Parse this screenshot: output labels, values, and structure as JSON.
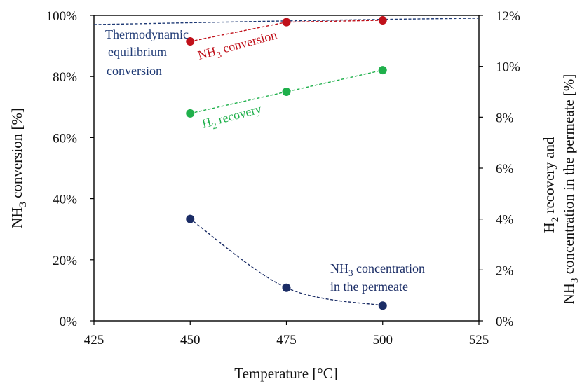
{
  "chart_data": {
    "type": "line",
    "xlabel": "Temperature [°C]",
    "ylabel_left": {
      "main": "NH",
      "sub": "3",
      "rest": " conversion [%]"
    },
    "ylabel_right_line1": {
      "main": "H",
      "sub": "2",
      "rest": " recovery and"
    },
    "ylabel_right_line2": {
      "main": "NH",
      "sub": "3",
      "rest": " concentration in the permeate [%]"
    },
    "xlim": [
      425,
      525
    ],
    "ylim_left": [
      0,
      100
    ],
    "ylim_right": [
      0,
      12
    ],
    "x_ticks": [
      "425",
      "450",
      "475",
      "500",
      "525"
    ],
    "y_left_ticks": [
      "0%",
      "20%",
      "40%",
      "60%",
      "80%",
      "100%"
    ],
    "y_right_ticks": [
      "0%",
      "2%",
      "4%",
      "6%",
      "8%",
      "10%",
      "12%"
    ],
    "grid": false,
    "series": [
      {
        "id": "equilibrium",
        "axis": "left",
        "style": "dashed-line",
        "color": "#1f3a75",
        "label_lines": [
          "Thermodynamic",
          "equilibrium",
          "conversion"
        ],
        "x": [
          425,
          450,
          475,
          500,
          525
        ],
        "y": [
          97.0,
          97.6,
          98.2,
          98.7,
          99.1
        ]
      },
      {
        "id": "nh3-conversion",
        "axis": "left",
        "style": "dashed-line-markers",
        "color": "#c0101a",
        "label": {
          "main": "NH",
          "sub": "3",
          "rest": " conversion"
        },
        "x": [
          450,
          475,
          500
        ],
        "y": [
          91.5,
          97.8,
          98.4
        ]
      },
      {
        "id": "h2-recovery",
        "axis": "right",
        "style": "dashed-line-markers",
        "color": "#1fb04b",
        "label": {
          "main": "H",
          "sub": "2",
          "rest": " recovery"
        },
        "x": [
          450,
          475,
          500
        ],
        "y": [
          8.15,
          9.0,
          9.85
        ]
      },
      {
        "id": "nh3-permeate",
        "axis": "right",
        "style": "dashed-curve-markers",
        "color": "#1b2d66",
        "label_line1": {
          "main": "NH",
          "sub": "3",
          "rest": " concentration"
        },
        "label_line2": "in the permeate",
        "x": [
          450,
          475,
          500
        ],
        "y": [
          4.0,
          1.3,
          0.6
        ]
      }
    ]
  }
}
